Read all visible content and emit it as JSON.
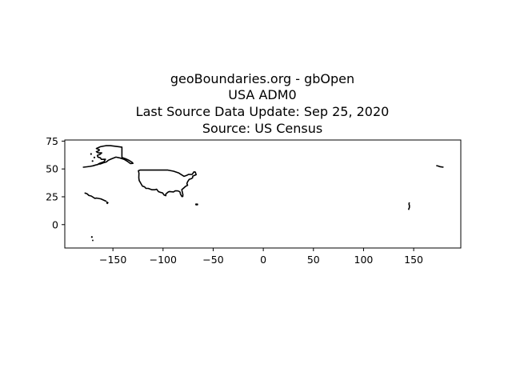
{
  "title_lines": [
    "geoBoundaries.org - gbOpen",
    "USA ADM0",
    "Last Source Data Update: Sep 25, 2020",
    "Source: US Census"
  ],
  "axes": {
    "xlim": [
      -198,
      197
    ],
    "ylim": [
      -21,
      76
    ],
    "xticks": [
      {
        "value": -150,
        "label": "−150"
      },
      {
        "value": -100,
        "label": "−100"
      },
      {
        "value": -50,
        "label": "−50"
      },
      {
        "value": 0,
        "label": "0"
      },
      {
        "value": 50,
        "label": "50"
      },
      {
        "value": 100,
        "label": "100"
      },
      {
        "value": 150,
        "label": "150"
      }
    ],
    "yticks": [
      {
        "value": 75,
        "label": "75"
      },
      {
        "value": 50,
        "label": "50"
      },
      {
        "value": 25,
        "label": "25"
      },
      {
        "value": 0,
        "label": "0"
      }
    ],
    "grid": false
  },
  "map_data": {
    "line_color": "#000000",
    "shapes": [
      {
        "name": "contiguous-us",
        "kind": "polygon",
        "points": [
          [
            -124.6,
            48.4
          ],
          [
            -123.0,
            49.0
          ],
          [
            -95.2,
            49.0
          ],
          [
            -89.5,
            48.0
          ],
          [
            -84.5,
            46.5
          ],
          [
            -82.5,
            45.3
          ],
          [
            -79.0,
            43.4
          ],
          [
            -76.5,
            44.2
          ],
          [
            -74.7,
            45.0
          ],
          [
            -71.0,
            45.1
          ],
          [
            -69.2,
            47.4
          ],
          [
            -67.8,
            47.1
          ],
          [
            -67.0,
            44.8
          ],
          [
            -70.3,
            43.6
          ],
          [
            -70.6,
            42.0
          ],
          [
            -72.0,
            41.2
          ],
          [
            -74.0,
            40.6
          ],
          [
            -75.5,
            38.5
          ],
          [
            -76.2,
            36.8
          ],
          [
            -75.5,
            35.3
          ],
          [
            -77.5,
            34.4
          ],
          [
            -79.0,
            33.2
          ],
          [
            -81.3,
            31.4
          ],
          [
            -80.2,
            27.0
          ],
          [
            -80.3,
            25.3
          ],
          [
            -81.2,
            25.2
          ],
          [
            -82.7,
            27.5
          ],
          [
            -83.0,
            29.2
          ],
          [
            -84.3,
            30.0
          ],
          [
            -86.0,
            30.4
          ],
          [
            -88.0,
            30.3
          ],
          [
            -89.5,
            29.4
          ],
          [
            -91.5,
            29.5
          ],
          [
            -93.8,
            29.7
          ],
          [
            -95.0,
            29.2
          ],
          [
            -97.2,
            27.5
          ],
          [
            -97.2,
            26.0
          ],
          [
            -99.0,
            26.6
          ],
          [
            -100.5,
            28.5
          ],
          [
            -103.0,
            29.1
          ],
          [
            -104.5,
            29.6
          ],
          [
            -106.5,
            31.8
          ],
          [
            -108.2,
            31.3
          ],
          [
            -111.0,
            31.3
          ],
          [
            -114.8,
            32.5
          ],
          [
            -117.1,
            32.6
          ],
          [
            -118.5,
            34.0
          ],
          [
            -120.6,
            34.6
          ],
          [
            -122.4,
            37.5
          ],
          [
            -123.8,
            39.6
          ],
          [
            -124.2,
            42.0
          ],
          [
            -124.0,
            46.2
          ],
          [
            -124.6,
            48.4
          ]
        ]
      },
      {
        "name": "alaska-mainland",
        "kind": "polygon",
        "points": [
          [
            -141.0,
            69.6
          ],
          [
            -141.0,
            60.3
          ],
          [
            -137.5,
            59.2
          ],
          [
            -134.5,
            58.0
          ],
          [
            -131.0,
            56.0
          ],
          [
            -130.0,
            55.0
          ],
          [
            -132.5,
            54.8
          ],
          [
            -135.0,
            56.5
          ],
          [
            -138.5,
            58.5
          ],
          [
            -143.5,
            60.0
          ],
          [
            -147.0,
            60.6
          ],
          [
            -150.5,
            59.4
          ],
          [
            -152.0,
            58.8
          ],
          [
            -154.5,
            57.8
          ],
          [
            -156.5,
            56.3
          ],
          [
            -160.0,
            55.3
          ],
          [
            -162.5,
            54.5
          ],
          [
            -164.7,
            54.4
          ],
          [
            -162.5,
            55.4
          ],
          [
            -159.0,
            56.4
          ],
          [
            -157.5,
            58.7
          ],
          [
            -161.5,
            58.6
          ],
          [
            -162.5,
            60.0
          ],
          [
            -165.0,
            60.6
          ],
          [
            -165.5,
            62.2
          ],
          [
            -163.0,
            63.1
          ],
          [
            -161.2,
            64.4
          ],
          [
            -164.8,
            64.6
          ],
          [
            -166.5,
            65.5
          ],
          [
            -164.0,
            66.4
          ],
          [
            -163.5,
            67.2
          ],
          [
            -166.5,
            68.4
          ],
          [
            -162.5,
            70.0
          ],
          [
            -157.0,
            70.9
          ],
          [
            -152.5,
            70.9
          ],
          [
            -147.0,
            70.3
          ],
          [
            -141.0,
            69.6
          ]
        ]
      },
      {
        "name": "aleutian-islands",
        "kind": "polyline",
        "points": [
          [
            -164.5,
            54.1
          ],
          [
            -167.0,
            53.6
          ],
          [
            -170.0,
            52.8
          ],
          [
            -173.0,
            52.3
          ],
          [
            -176.0,
            51.9
          ],
          [
            -179.5,
            51.6
          ],
          [
            -180.0,
            51.6
          ]
        ]
      },
      {
        "name": "aleutian-west",
        "kind": "polyline",
        "points": [
          [
            172.5,
            53.0
          ],
          [
            174.0,
            52.7
          ],
          [
            176.0,
            52.1
          ],
          [
            178.0,
            51.8
          ],
          [
            179.8,
            51.6
          ]
        ]
      },
      {
        "name": "alaska-islet-1",
        "kind": "speck",
        "points": [
          [
            -170.3,
            57.1
          ]
        ]
      },
      {
        "name": "alaska-islet-2",
        "kind": "speck",
        "points": [
          [
            -168.5,
            60.3
          ]
        ]
      },
      {
        "name": "alaska-islet-3",
        "kind": "speck",
        "points": [
          [
            -171.8,
            63.4
          ]
        ]
      },
      {
        "name": "hawaii-big-island",
        "kind": "polygon",
        "points": [
          [
            -155.9,
            20.2
          ],
          [
            -155.0,
            19.7
          ],
          [
            -155.6,
            19.0
          ],
          [
            -156.0,
            19.6
          ],
          [
            -155.9,
            20.2
          ]
        ]
      },
      {
        "name": "hawaii-chain",
        "kind": "polyline",
        "points": [
          [
            -178.3,
            28.4
          ],
          [
            -175.9,
            27.8
          ],
          [
            -173.9,
            26.1
          ],
          [
            -171.7,
            25.7
          ],
          [
            -168.0,
            23.6
          ],
          [
            -166.2,
            23.8
          ],
          [
            -161.9,
            23.1
          ],
          [
            -159.5,
            22.1
          ],
          [
            -158.0,
            21.5
          ],
          [
            -157.0,
            21.1
          ],
          [
            -156.4,
            20.8
          ]
        ]
      },
      {
        "name": "puerto-rico",
        "kind": "polygon",
        "points": [
          [
            -67.3,
            18.4
          ],
          [
            -65.6,
            18.4
          ],
          [
            -65.6,
            17.9
          ],
          [
            -67.2,
            17.9
          ],
          [
            -67.3,
            18.4
          ]
        ]
      },
      {
        "name": "guam-mariana",
        "kind": "polyline",
        "points": [
          [
            145.7,
            20.0
          ],
          [
            145.3,
            18.5
          ],
          [
            145.8,
            17.0
          ],
          [
            145.7,
            15.2
          ],
          [
            145.2,
            14.3
          ],
          [
            144.8,
            13.3
          ]
        ]
      },
      {
        "name": "american-samoa",
        "kind": "polyline",
        "points": [
          [
            -170.8,
            -14.2
          ],
          [
            -169.4,
            -14.2
          ]
        ]
      },
      {
        "name": "samoa-islet",
        "kind": "speck",
        "points": [
          [
            -171.0,
            -11.1
          ]
        ]
      }
    ]
  }
}
